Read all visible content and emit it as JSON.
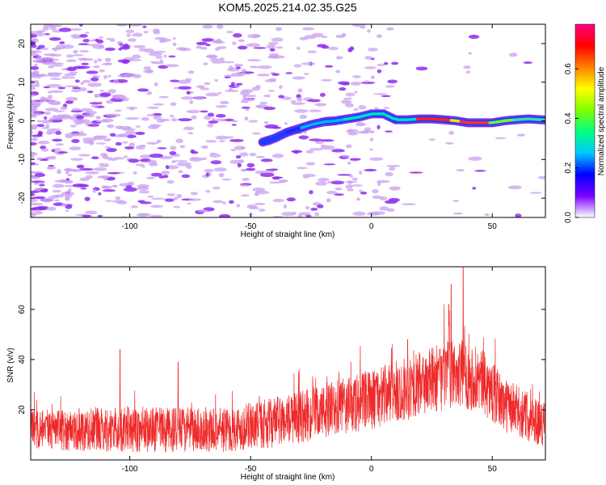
{
  "title": "KOM5.2025.214.02.35.G25",
  "colors": {
    "snr_line": "#ee2a2a",
    "noise_purple": "#c9a0f0",
    "noise_dark": "#8e2bf0"
  },
  "chart_data": [
    {
      "type": "heatmap",
      "name": "spectrogram",
      "xlabel": "Height of straight line (km)",
      "ylabel": "Frequency (Hz)",
      "xlim": [
        -141,
        72
      ],
      "ylim": [
        -25,
        25
      ],
      "x_ticks": [
        -100,
        -50,
        0,
        50
      ],
      "x_tick_labels": [
        "-100",
        "-50",
        "0",
        "50"
      ],
      "y_ticks": [
        -20,
        -10,
        0,
        10,
        20
      ],
      "y_tick_labels": [
        "-20",
        "-10",
        "0",
        "10",
        "20"
      ],
      "ridge": [
        {
          "x": -45,
          "y": -5.5
        },
        {
          "x": -40,
          "y": -4.5
        },
        {
          "x": -35,
          "y": -3
        },
        {
          "x": -30,
          "y": -2
        },
        {
          "x": -25,
          "y": -1
        },
        {
          "x": -20,
          "y": -0.3
        },
        {
          "x": -15,
          "y": 0
        },
        {
          "x": -10,
          "y": 0.5
        },
        {
          "x": -5,
          "y": 1
        },
        {
          "x": 0,
          "y": 1.8
        },
        {
          "x": 5,
          "y": 1.8
        },
        {
          "x": 10,
          "y": 0.3
        },
        {
          "x": 15,
          "y": 0.3
        },
        {
          "x": 20,
          "y": 0.5
        },
        {
          "x": 25,
          "y": 0.5
        },
        {
          "x": 30,
          "y": 0.3
        },
        {
          "x": 35,
          "y": 0
        },
        {
          "x": 40,
          "y": -0.5
        },
        {
          "x": 45,
          "y": -0.5
        },
        {
          "x": 50,
          "y": -0.5
        },
        {
          "x": 55,
          "y": 0
        },
        {
          "x": 60,
          "y": 0.3
        },
        {
          "x": 65,
          "y": 0.5
        },
        {
          "x": 72,
          "y": 0.2
        }
      ],
      "colorbar": {
        "label": "Normalized spectral amplitude",
        "range": [
          0,
          0.78
        ],
        "ticks": [
          0.0,
          0.2,
          0.4,
          0.6
        ],
        "tick_labels": [
          "0.0",
          "0.2",
          "0.4",
          "0.6"
        ],
        "stops": [
          "#ffffff",
          "#7b00ff",
          "#0000ff",
          "#00c8ff",
          "#00ff80",
          "#80ff00",
          "#ffff00",
          "#ff8000",
          "#ff0000",
          "#ff0080"
        ]
      },
      "grid": false
    },
    {
      "type": "line",
      "name": "snr",
      "xlabel": "Height of straight line (km)",
      "ylabel": "SNR (v/v)",
      "xlim": [
        -141,
        72
      ],
      "ylim": [
        0,
        77
      ],
      "x_ticks": [
        -100,
        -50,
        0,
        50
      ],
      "x_tick_labels": [
        "-100",
        "-50",
        "0",
        "50"
      ],
      "y_ticks": [
        20,
        40,
        60
      ],
      "y_tick_labels": [
        "20",
        "40",
        "60"
      ],
      "envelope": [
        {
          "x": -141,
          "mean": 12,
          "spread": 8
        },
        {
          "x": -100,
          "mean": 12,
          "spread": 9
        },
        {
          "x": -60,
          "mean": 12,
          "spread": 9
        },
        {
          "x": -40,
          "mean": 15,
          "spread": 10
        },
        {
          "x": -20,
          "mean": 19,
          "spread": 11
        },
        {
          "x": 0,
          "mean": 24,
          "spread": 12
        },
        {
          "x": 20,
          "mean": 30,
          "spread": 13
        },
        {
          "x": 35,
          "mean": 35,
          "spread": 14
        },
        {
          "x": 45,
          "mean": 32,
          "spread": 13
        },
        {
          "x": 55,
          "mean": 22,
          "spread": 11
        },
        {
          "x": 72,
          "mean": 14,
          "spread": 9
        }
      ],
      "peaks": [
        {
          "x": 33,
          "y": 70
        },
        {
          "x": 38,
          "y": 77
        },
        {
          "x": 32,
          "y": 62
        },
        {
          "x": -104,
          "y": 44
        },
        {
          "x": -80,
          "y": 39
        },
        {
          "x": 15,
          "y": 48
        }
      ],
      "grid": false
    }
  ]
}
